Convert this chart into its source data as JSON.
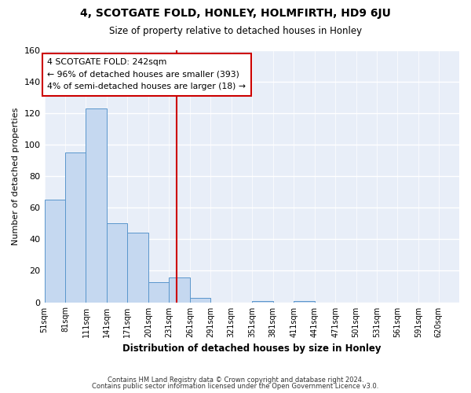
{
  "title": "4, SCOTGATE FOLD, HONLEY, HOLMFIRTH, HD9 6JU",
  "subtitle": "Size of property relative to detached houses in Honley",
  "xlabel": "Distribution of detached houses by size in Honley",
  "ylabel": "Number of detached properties",
  "bar_color": "#c5d8f0",
  "bar_edge_color": "#5a96cc",
  "vline_x": 242,
  "vline_color": "#cc0000",
  "annotation_title": "4 SCOTGATE FOLD: 242sqm",
  "annotation_line1": "← 96% of detached houses are smaller (393)",
  "annotation_line2": "4% of semi-detached houses are larger (18) →",
  "bin_edges": [
    51,
    81,
    111,
    141,
    171,
    201,
    231,
    261,
    291,
    321,
    351,
    381,
    411,
    441,
    471,
    501,
    531,
    561,
    591,
    620,
    650
  ],
  "counts": [
    65,
    95,
    123,
    50,
    44,
    13,
    16,
    3,
    0,
    0,
    1,
    0,
    1,
    0,
    0,
    0,
    0,
    0,
    0,
    0
  ],
  "ylim": [
    0,
    160
  ],
  "yticks": [
    0,
    20,
    40,
    60,
    80,
    100,
    120,
    140,
    160
  ],
  "footer1": "Contains HM Land Registry data © Crown copyright and database right 2024.",
  "footer2": "Contains public sector information licensed under the Open Government Licence v3.0.",
  "plot_bg_color": "#e8eef8",
  "fig_bg_color": "#ffffff"
}
